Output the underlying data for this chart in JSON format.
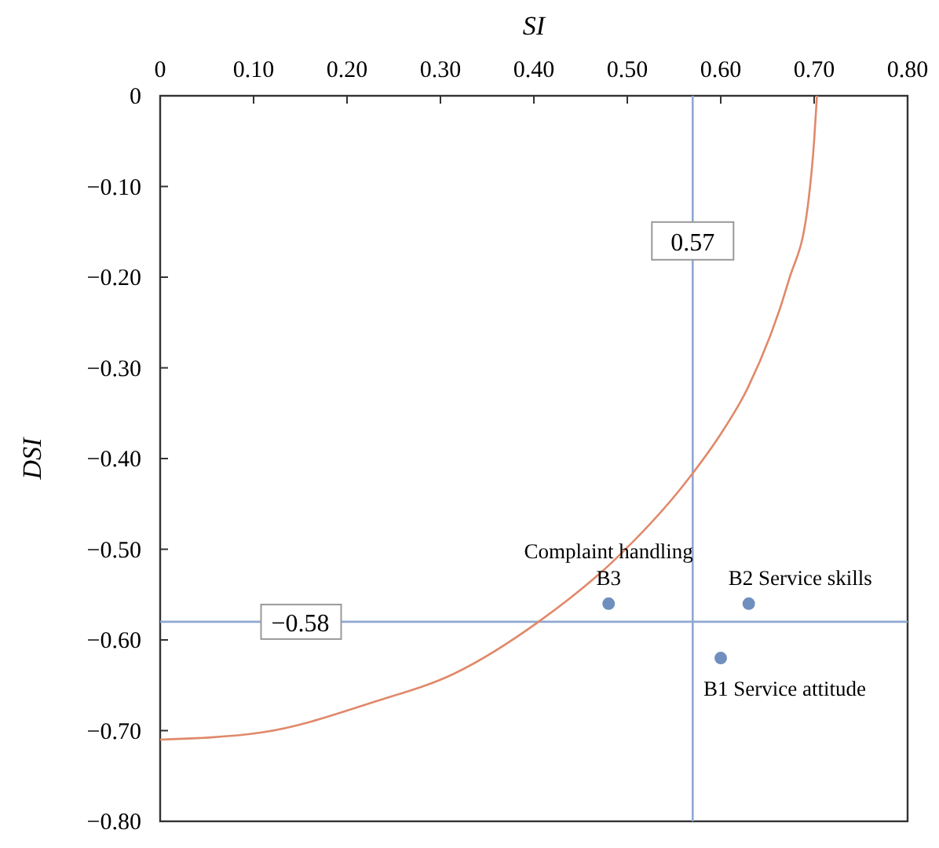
{
  "chart_data": {
    "type": "scatter",
    "xlabel": "SI",
    "ylabel": "DSI",
    "xlim": [
      0,
      0.8
    ],
    "ylim": [
      -0.8,
      0
    ],
    "xticks": [
      0,
      {
        "value": 0.1,
        "label": "0.10"
      },
      {
        "value": 0.2,
        "label": "0.20"
      },
      {
        "value": 0.3,
        "label": "0.30"
      },
      {
        "value": 0.4,
        "label": "0.40"
      },
      {
        "value": 0.5,
        "label": "0.50"
      },
      {
        "value": 0.6,
        "label": "0.60"
      },
      {
        "value": 0.7,
        "label": "0.70"
      },
      {
        "value": 0.8,
        "label": "0.80"
      }
    ],
    "yticks": [
      0,
      {
        "value": -0.1,
        "label": "−0.10"
      },
      {
        "value": -0.2,
        "label": "−0.20"
      },
      {
        "value": -0.3,
        "label": "−0.30"
      },
      {
        "value": -0.4,
        "label": "−0.40"
      },
      {
        "value": -0.5,
        "label": "−0.50"
      },
      {
        "value": -0.6,
        "label": "−0.60"
      },
      {
        "value": -0.7,
        "label": "−0.70"
      },
      {
        "value": -0.8,
        "label": "−0.80"
      }
    ],
    "series": [
      {
        "type": "line",
        "color": "#e0896a",
        "x": [
          0,
          0.109,
          0.23,
          0.315,
          0.405,
          0.483,
          0.565,
          0.6,
          0.629,
          0.673,
          0.693,
          0.7,
          0.703
        ],
        "values": [
          -0.71,
          -0.702,
          -0.668,
          -0.637,
          -0.58,
          -0.515,
          -0.423,
          -0.373,
          -0.322,
          -0.203,
          -0.123,
          -0.049,
          0
        ]
      },
      {
        "color": "#6f8fbf",
        "marker": "circle",
        "x": [
          0.48,
          0.63,
          0.6
        ],
        "values": [
          -0.56,
          -0.56,
          -0.62
        ]
      }
    ],
    "ref_lines": [
      {
        "axis": "x",
        "value": 0.57,
        "label": "0.57",
        "color": "#8fa8d2"
      },
      {
        "axis": "y",
        "value": -0.58,
        "label": "−0.58",
        "color": "#8fa8d2"
      }
    ],
    "annotations": [
      {
        "text": "Complaint handling\nB3",
        "x": 0.48,
        "y": -0.56
      },
      {
        "text": "B2 Service skills",
        "x": 0.63,
        "y": -0.56
      },
      {
        "text": "B1 Service attitude",
        "x": 0.6,
        "y": -0.62
      }
    ]
  }
}
